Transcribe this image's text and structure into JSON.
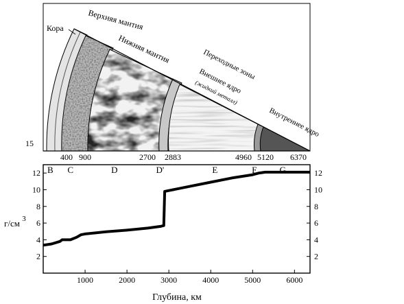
{
  "cross_section": {
    "layer_labels": {
      "crust": "Кора",
      "upper_mantle": "Верхняя мантия",
      "lower_mantle": "Нижняя мантия",
      "transition_zone": "Переходные зоны",
      "outer_core": "Внешнее ядро",
      "outer_core_note": "(жидкий металл)",
      "inner_core": "Внутреннее ядро"
    },
    "boundary_depths_km": [
      "15",
      "400",
      "900",
      "2700",
      "2883",
      "4960",
      "5120",
      "6370"
    ]
  },
  "chart_data": {
    "type": "line",
    "xlabel": "Глубина, км",
    "ylabel": "г/см",
    "ylabel_exponent": "3",
    "xlim": [
      0,
      6371
    ],
    "ylim": [
      0,
      13
    ],
    "x_ticks": [
      "1000",
      "2000",
      "3000",
      "4000",
      "5000",
      "6000"
    ],
    "y_ticks_left": [
      "2",
      "4",
      "6",
      "8",
      "10",
      "12"
    ],
    "y_ticks_right": [
      "2",
      "4",
      "6",
      "8",
      "10",
      "12"
    ],
    "zone_letters": [
      {
        "label": "B",
        "depth": 170
      },
      {
        "label": "C",
        "depth": 650
      },
      {
        "label": "D",
        "depth": 1700
      },
      {
        "label": "D'",
        "depth": 2790
      },
      {
        "label": "E",
        "depth": 4100
      },
      {
        "label": "F",
        "depth": 5040
      },
      {
        "label": "G",
        "depth": 5720
      }
    ],
    "series": [
      {
        "x": [
          0,
          200,
          400,
          450,
          650,
          800,
          900,
          1000,
          1500,
          2000,
          2500,
          2800,
          2880,
          2900,
          3000,
          3500,
          4000,
          4500,
          5000,
          5150,
          5300,
          6371
        ],
        "y": [
          3.35,
          3.5,
          3.8,
          4.0,
          4.0,
          4.3,
          4.6,
          4.7,
          4.95,
          5.15,
          5.4,
          5.6,
          5.7,
          9.8,
          9.9,
          10.4,
          10.9,
          11.4,
          11.8,
          12.0,
          12.1,
          12.1
        ]
      }
    ]
  }
}
